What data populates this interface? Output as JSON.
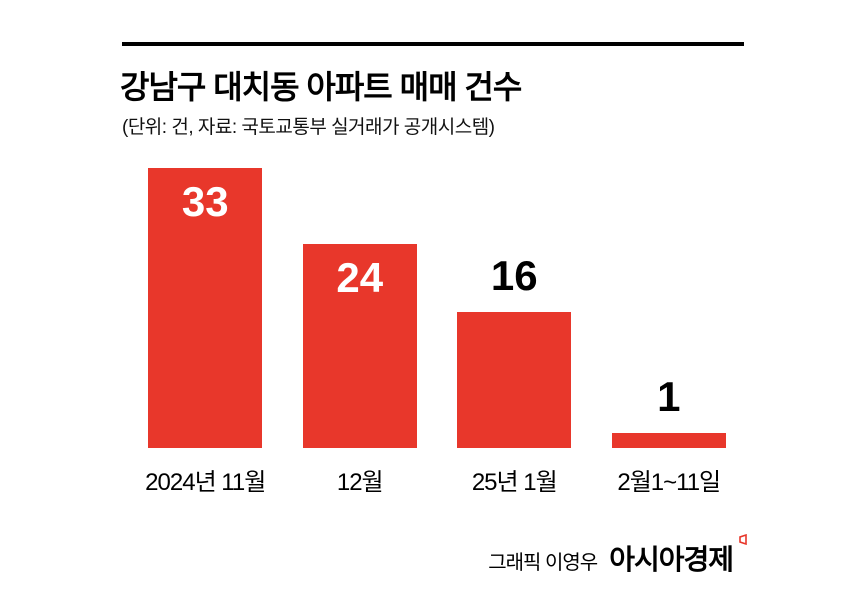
{
  "header": {
    "title": "강남구 대치동 아파트 매매 건수",
    "subtitle": "(단위: 건, 자료: 국토교통부 실거래가 공개시스템)"
  },
  "chart_data": {
    "type": "bar",
    "title": "강남구 대치동 아파트 매매 건수",
    "unit_note": "(단위: 건, 자료: 국토교통부 실거래가 공개시스템)",
    "categories": [
      "2024년 11월",
      "12월",
      "25년 1월",
      "2월1~11일"
    ],
    "values": [
      33,
      24,
      16,
      1
    ],
    "ylim": [
      0,
      33
    ],
    "bar_color": "#e8372b",
    "value_label_positions": [
      "inside",
      "inside",
      "above",
      "above"
    ],
    "grid": false,
    "legend": "none"
  },
  "footer": {
    "credit": "그래픽 이영우",
    "brand": "아시아경제",
    "brand_color": "#e8372b"
  }
}
